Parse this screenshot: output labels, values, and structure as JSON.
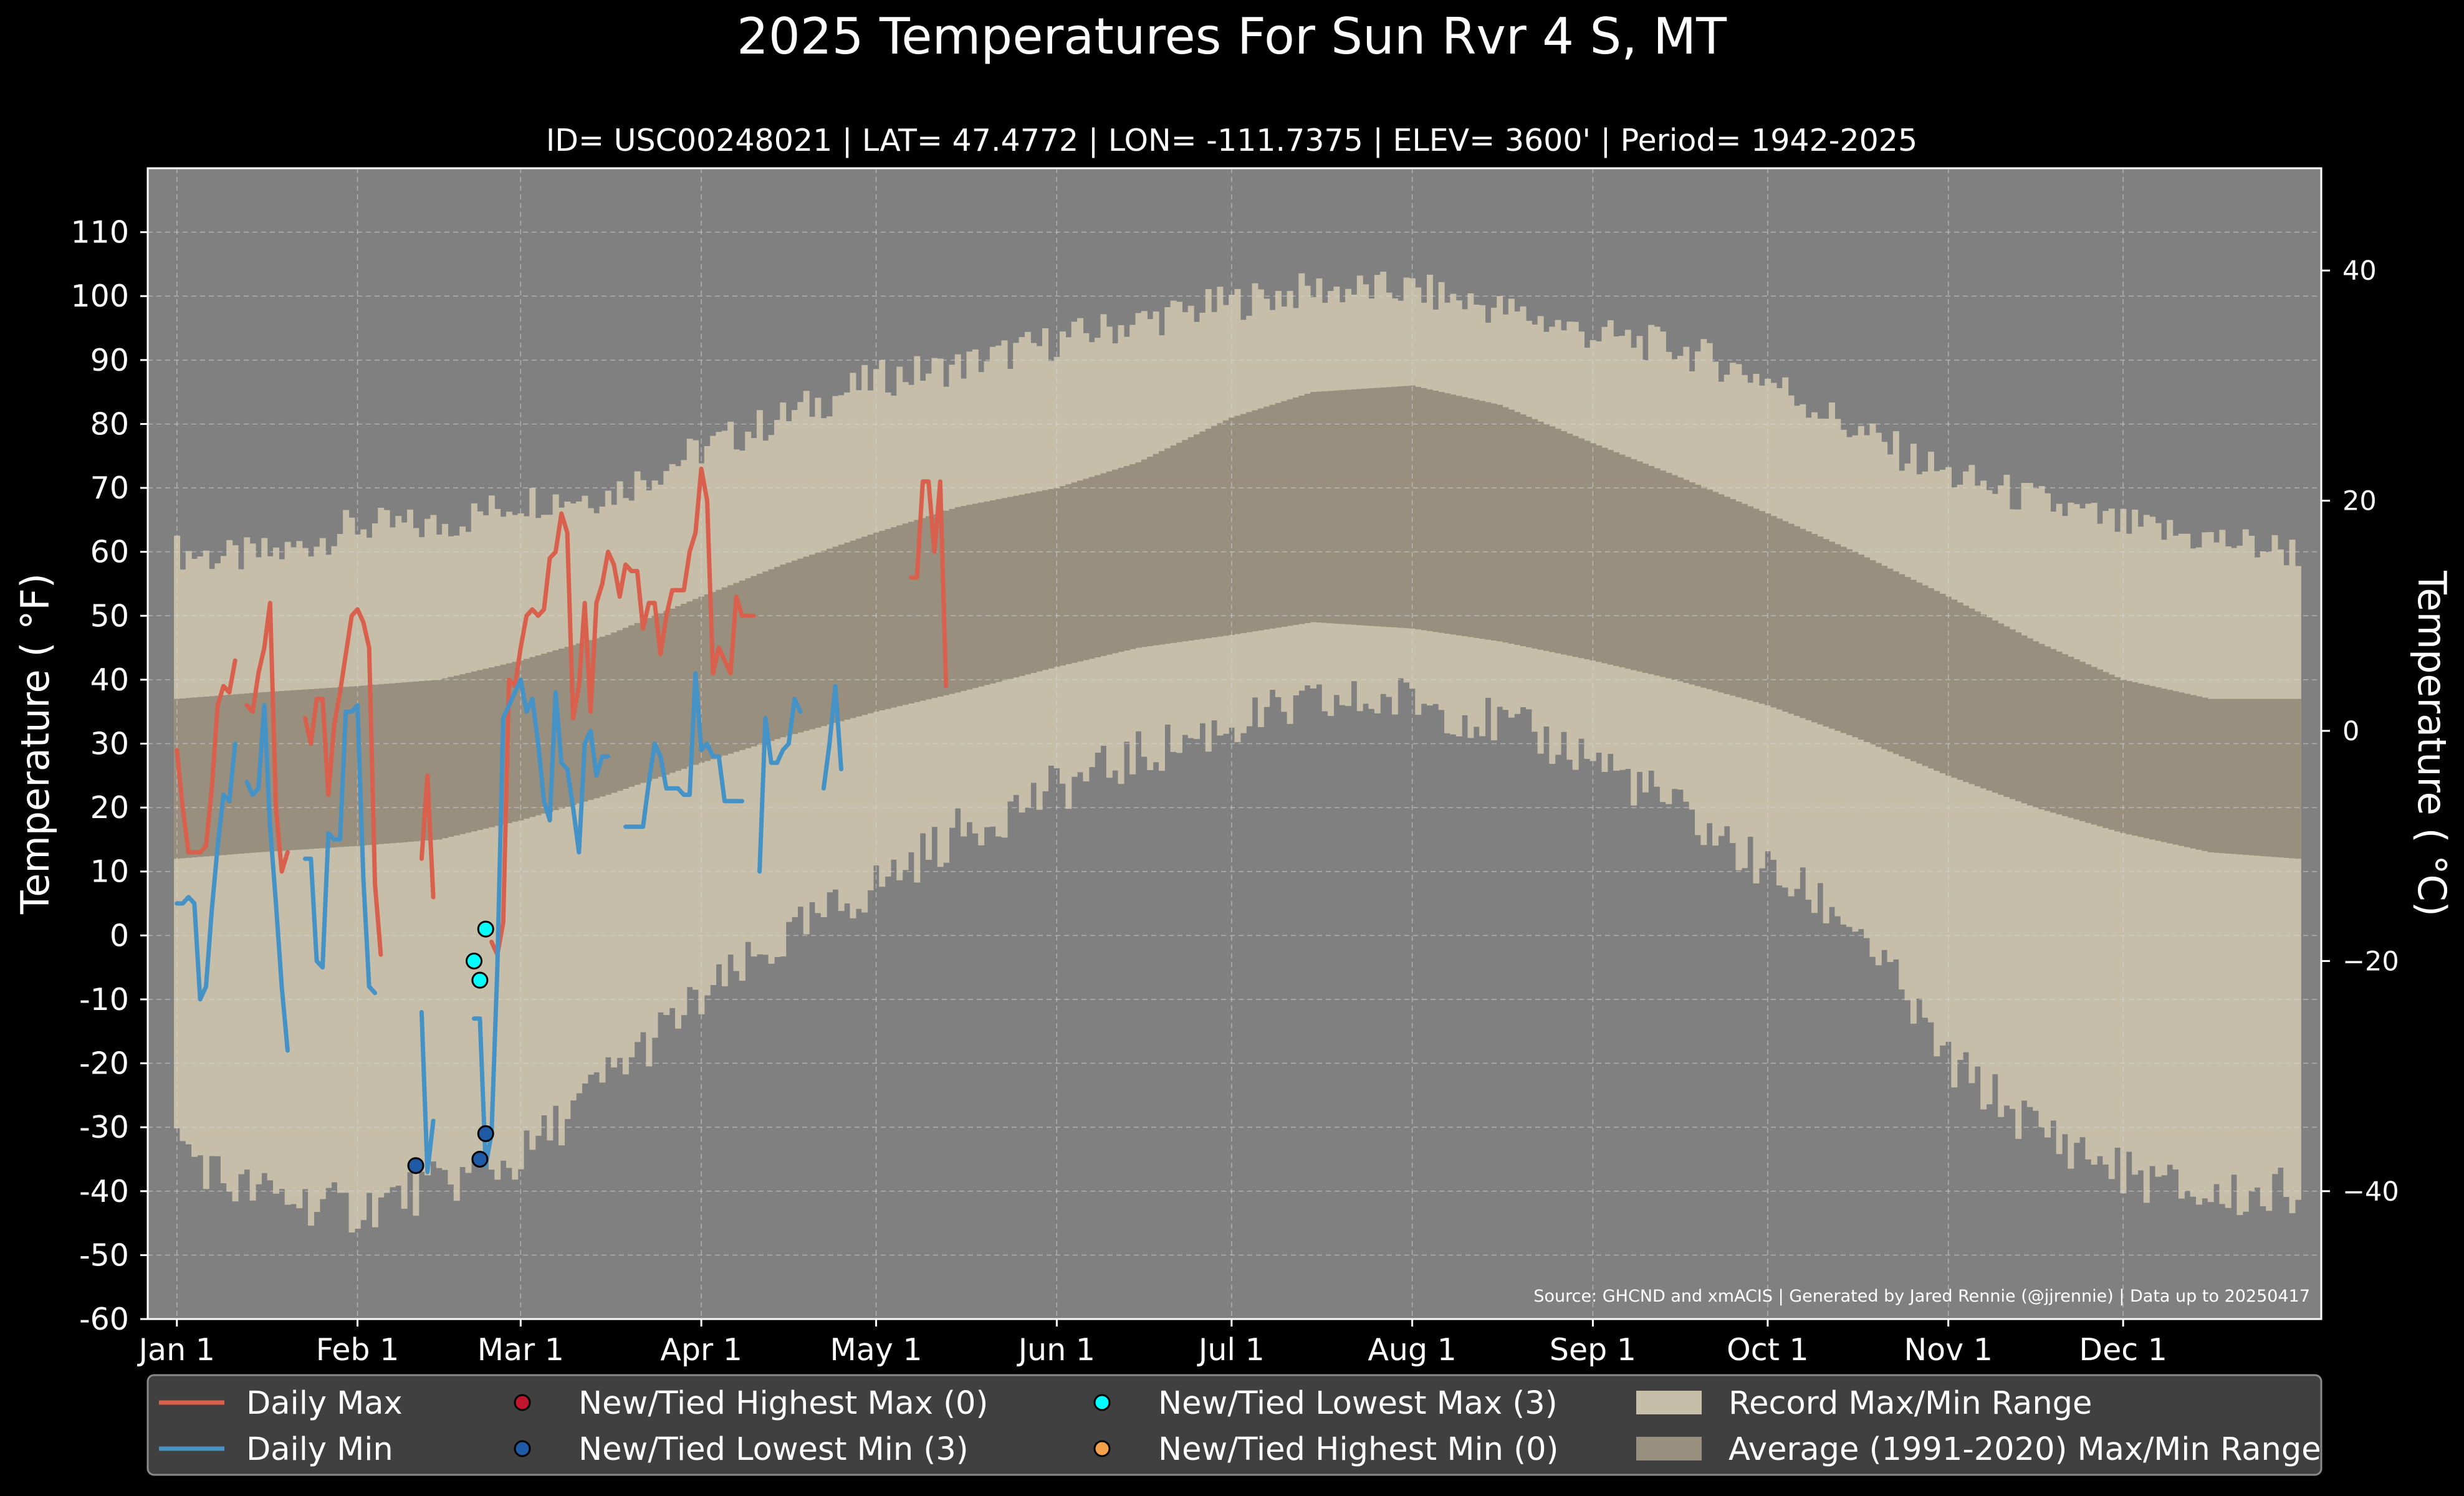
{
  "chart_data": {
    "type": "line",
    "title": "2025 Temperatures For Sun Rvr 4 S, MT",
    "subtitle": "ID= USC00248021 | LAT= 47.4772 | LON= -111.7375 | ELEV= 3600' | Period= 1942-2025",
    "ylabel_left": "Temperature ( °F)",
    "ylabel_right": "Temperature ( °C)",
    "source_note": "Source: GHCND and xmACIS | Generated by Jared Rennie (@jjrennie) | Data up to 20250417",
    "x_unit": "day of year",
    "xlim": [
      -4,
      369
    ],
    "ylim": [
      -60,
      120
    ],
    "yticks": [
      -60,
      -50,
      -40,
      -30,
      -20,
      -10,
      0,
      10,
      20,
      30,
      40,
      50,
      60,
      70,
      80,
      90,
      100,
      110
    ],
    "ytick_labels": [
      "-60",
      "-50",
      "-40",
      "-30",
      "-20",
      "-10",
      "0",
      "10",
      "20",
      "30",
      "40",
      "50",
      "60",
      "70",
      "80",
      "90",
      "100",
      "110"
    ],
    "ctick_values": [
      -40,
      -20,
      0,
      20,
      40
    ],
    "ctick_labels": [
      "−40",
      "−20",
      "0",
      "20",
      "40"
    ],
    "xticks": [
      {
        "day": 1,
        "label": "Jan 1"
      },
      {
        "day": 32,
        "label": "Feb 1"
      },
      {
        "day": 60,
        "label": "Mar 1"
      },
      {
        "day": 91,
        "label": "Apr 1"
      },
      {
        "day": 121,
        "label": "May 1"
      },
      {
        "day": 152,
        "label": "Jun 1"
      },
      {
        "day": 182,
        "label": "Jul 1"
      },
      {
        "day": 213,
        "label": "Aug 1"
      },
      {
        "day": 244,
        "label": "Sep 1"
      },
      {
        "day": 274,
        "label": "Oct 1"
      },
      {
        "day": 305,
        "label": "Nov 1"
      },
      {
        "day": 335,
        "label": "Dec 1"
      }
    ],
    "grid": true,
    "legend_position": "bottom",
    "colors": {
      "background": "#000000",
      "plot_background": "#808080",
      "record_range": "#c6bea8",
      "average_range": "#998f7f",
      "daily_max": "#d9604c",
      "daily_min": "#4592c6",
      "new_highest_max": "#c0152f",
      "new_lowest_min": "#1f5aa6",
      "new_lowest_max": "#00ffff",
      "new_highest_min": "#f5a04a",
      "legend_background": "#404040"
    },
    "record_max_anchors": [
      [
        1,
        60
      ],
      [
        10,
        59
      ],
      [
        20,
        60
      ],
      [
        31,
        64
      ],
      [
        46,
        64
      ],
      [
        60,
        68
      ],
      [
        75,
        69
      ],
      [
        91,
        76
      ],
      [
        105,
        81
      ],
      [
        121,
        87
      ],
      [
        135,
        89
      ],
      [
        152,
        93
      ],
      [
        166,
        96
      ],
      [
        182,
        99
      ],
      [
        196,
        101
      ],
      [
        213,
        101
      ],
      [
        228,
        98
      ],
      [
        244,
        94
      ],
      [
        258,
        92
      ],
      [
        274,
        87
      ],
      [
        289,
        79
      ],
      [
        305,
        72
      ],
      [
        320,
        68
      ],
      [
        335,
        64
      ],
      [
        350,
        62
      ],
      [
        365,
        60
      ]
    ],
    "record_min_anchors": [
      [
        1,
        -32
      ],
      [
        10,
        -39
      ],
      [
        20,
        -41
      ],
      [
        31,
        -43
      ],
      [
        46,
        -39
      ],
      [
        60,
        -35
      ],
      [
        75,
        -22
      ],
      [
        91,
        -10
      ],
      [
        105,
        -1
      ],
      [
        121,
        8
      ],
      [
        135,
        16
      ],
      [
        152,
        23
      ],
      [
        166,
        28
      ],
      [
        182,
        33
      ],
      [
        196,
        36
      ],
      [
        213,
        37
      ],
      [
        228,
        33
      ],
      [
        244,
        28
      ],
      [
        258,
        20
      ],
      [
        274,
        10
      ],
      [
        289,
        2
      ],
      [
        305,
        -20
      ],
      [
        320,
        -30
      ],
      [
        335,
        -37
      ],
      [
        350,
        -41
      ],
      [
        365,
        -40
      ]
    ],
    "avg_max_anchors": [
      [
        1,
        37
      ],
      [
        15,
        38
      ],
      [
        32,
        39
      ],
      [
        46,
        40
      ],
      [
        60,
        43
      ],
      [
        75,
        47
      ],
      [
        91,
        53
      ],
      [
        105,
        58
      ],
      [
        121,
        63
      ],
      [
        135,
        67
      ],
      [
        152,
        70
      ],
      [
        166,
        74
      ],
      [
        182,
        81
      ],
      [
        196,
        85
      ],
      [
        213,
        86
      ],
      [
        228,
        83
      ],
      [
        244,
        77
      ],
      [
        258,
        72
      ],
      [
        274,
        66
      ],
      [
        289,
        60
      ],
      [
        305,
        53
      ],
      [
        320,
        46
      ],
      [
        335,
        40
      ],
      [
        350,
        37
      ],
      [
        365,
        37
      ]
    ],
    "avg_min_anchors": [
      [
        1,
        12
      ],
      [
        15,
        13
      ],
      [
        32,
        14
      ],
      [
        46,
        15
      ],
      [
        60,
        18
      ],
      [
        75,
        22
      ],
      [
        91,
        27
      ],
      [
        105,
        31
      ],
      [
        121,
        35
      ],
      [
        135,
        38
      ],
      [
        152,
        42
      ],
      [
        166,
        45
      ],
      [
        182,
        47
      ],
      [
        196,
        49
      ],
      [
        213,
        48
      ],
      [
        228,
        46
      ],
      [
        244,
        43
      ],
      [
        258,
        40
      ],
      [
        274,
        36
      ],
      [
        289,
        31
      ],
      [
        305,
        25
      ],
      [
        320,
        20
      ],
      [
        335,
        16
      ],
      [
        350,
        13
      ],
      [
        365,
        12
      ]
    ],
    "series": [
      {
        "name": "Daily Max",
        "start_day": 1,
        "values": [
          29,
          20,
          13,
          13,
          13,
          14,
          23,
          36,
          39,
          38,
          43,
          null,
          36,
          35,
          41,
          45,
          52,
          20,
          10,
          13,
          null,
          null,
          34,
          30,
          37,
          37,
          22,
          33,
          38,
          44,
          50,
          51,
          49,
          45,
          8,
          -3,
          null,
          null,
          null,
          null,
          null,
          null,
          12,
          25,
          6,
          null,
          null,
          null,
          null,
          null,
          null,
          null,
          null,
          null,
          -1,
          -3,
          2,
          40,
          39,
          45,
          50,
          51,
          50,
          51,
          59,
          60,
          66,
          63,
          34,
          39,
          52,
          35,
          52,
          55,
          60,
          58,
          53,
          58,
          57,
          57,
          48,
          52,
          52,
          44,
          50,
          54,
          54,
          54,
          60,
          63,
          73,
          68,
          41,
          45,
          43,
          41,
          53,
          50,
          50,
          50,
          null,
          null,
          null,
          null,
          null,
          null,
          null,
          null,
          null,
          null,
          null,
          null,
          null,
          null,
          null,
          null,
          null,
          null,
          null,
          null,
          null,
          null,
          null,
          null,
          null,
          null,
          56,
          56,
          71,
          71,
          60,
          71,
          39
        ]
      },
      {
        "name": "Daily Min",
        "start_day": 1,
        "values": [
          5,
          5,
          6,
          5,
          -10,
          -8,
          4,
          14,
          22,
          21,
          30,
          null,
          24,
          22,
          23,
          36,
          17,
          5,
          -8,
          -18,
          null,
          null,
          12,
          12,
          -4,
          -5,
          16,
          15,
          15,
          35,
          35,
          36,
          9,
          -8,
          -9,
          null,
          null,
          null,
          null,
          null,
          null,
          null,
          -12,
          -37,
          -29,
          null,
          null,
          null,
          null,
          null,
          null,
          -13,
          -13,
          -36,
          -31,
          -5,
          34,
          36,
          38,
          40,
          35,
          37,
          30,
          21,
          18,
          38,
          27,
          26,
          20,
          13,
          30,
          32,
          25,
          28,
          28,
          null,
          null,
          17,
          17,
          17,
          17,
          24,
          30,
          28,
          23,
          23,
          23,
          22,
          22,
          41,
          29,
          30,
          28,
          28,
          21,
          21,
          21,
          21,
          null,
          null,
          10,
          34,
          27,
          27,
          29,
          30,
          37,
          35,
          null,
          null,
          null,
          23,
          30,
          39,
          26
        ]
      }
    ],
    "record_markers": {
      "new_lowest_max": [
        {
          "day": 52,
          "value": -4
        },
        {
          "day": 53,
          "value": -7
        },
        {
          "day": 54,
          "value": 1
        }
      ],
      "new_lowest_min": [
        {
          "day": 42,
          "value": -36
        },
        {
          "day": 53,
          "value": -35
        },
        {
          "day": 54,
          "value": -31
        }
      ]
    },
    "legend": [
      {
        "label": "Daily Max",
        "kind": "line",
        "color_key": "daily_max"
      },
      {
        "label": "Daily Min",
        "kind": "line",
        "color_key": "daily_min"
      },
      {
        "label": "New/Tied Highest Max (0)",
        "kind": "dot",
        "color_key": "new_highest_max"
      },
      {
        "label": "New/Tied Lowest Min (3)",
        "kind": "dot",
        "color_key": "new_lowest_min"
      },
      {
        "label": "New/Tied Lowest Max (3)",
        "kind": "dot",
        "color_key": "new_lowest_max"
      },
      {
        "label": "New/Tied Highest Min (0)",
        "kind": "dot",
        "color_key": "new_highest_min"
      },
      {
        "label": "Record Max/Min Range",
        "kind": "patch",
        "color_key": "record_range"
      },
      {
        "label": "Average (1991-2020) Max/Min Range",
        "kind": "patch",
        "color_key": "average_range"
      }
    ]
  }
}
